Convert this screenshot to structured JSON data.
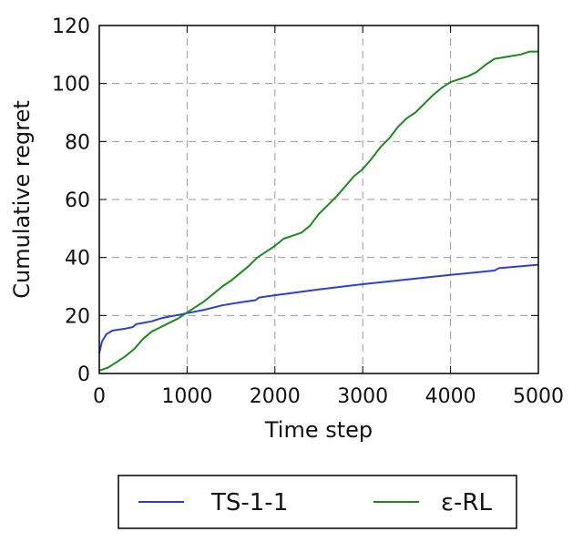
{
  "chart_data": {
    "type": "line",
    "title": "",
    "xlabel": "Time step",
    "ylabel": "Cumulative regret",
    "xlim": [
      0,
      5000
    ],
    "ylim": [
      0,
      120
    ],
    "xticks": [
      0,
      1000,
      2000,
      3000,
      4000,
      5000
    ],
    "yticks": [
      0,
      20,
      40,
      60,
      80,
      100,
      120
    ],
    "x_tick_labels": [
      "0",
      "1000",
      "2000",
      "3000",
      "4000",
      "5000"
    ],
    "y_tick_labels": [
      "0",
      "20",
      "40",
      "60",
      "80",
      "100",
      "120"
    ],
    "grid": true,
    "legend_position": "below",
    "series": [
      {
        "name": "TS-1-1",
        "color": "#2c3fd8",
        "points": [
          [
            0,
            7
          ],
          [
            30,
            11
          ],
          [
            80,
            13.5
          ],
          [
            150,
            14.8
          ],
          [
            300,
            15.5
          ],
          [
            380,
            16
          ],
          [
            420,
            17
          ],
          [
            600,
            18
          ],
          [
            700,
            19
          ],
          [
            780,
            19.5
          ],
          [
            900,
            20.2
          ],
          [
            1000,
            20.8
          ],
          [
            1200,
            22
          ],
          [
            1400,
            23.5
          ],
          [
            1600,
            24.5
          ],
          [
            1780,
            25.3
          ],
          [
            1820,
            26.2
          ],
          [
            2000,
            27
          ],
          [
            2500,
            29
          ],
          [
            3000,
            30.8
          ],
          [
            3500,
            32.4
          ],
          [
            4000,
            34
          ],
          [
            4500,
            35.5
          ],
          [
            4550,
            36.3
          ],
          [
            5000,
            37.5
          ]
        ]
      },
      {
        "name": "ε-RL",
        "color": "#1a8a1a",
        "points": [
          [
            0,
            1
          ],
          [
            100,
            2
          ],
          [
            200,
            4
          ],
          [
            300,
            6
          ],
          [
            400,
            8.5
          ],
          [
            500,
            12
          ],
          [
            600,
            14.5
          ],
          [
            700,
            16
          ],
          [
            800,
            17.5
          ],
          [
            900,
            19
          ],
          [
            1000,
            21
          ],
          [
            1100,
            23
          ],
          [
            1200,
            25
          ],
          [
            1300,
            27.5
          ],
          [
            1400,
            30
          ],
          [
            1500,
            32
          ],
          [
            1600,
            34.5
          ],
          [
            1700,
            37
          ],
          [
            1800,
            40
          ],
          [
            1900,
            42
          ],
          [
            2000,
            44
          ],
          [
            2100,
            46.5
          ],
          [
            2200,
            47.5
          ],
          [
            2300,
            48.5
          ],
          [
            2400,
            51
          ],
          [
            2500,
            55
          ],
          [
            2600,
            58
          ],
          [
            2700,
            61
          ],
          [
            2800,
            64.5
          ],
          [
            2900,
            68
          ],
          [
            3000,
            70.5
          ],
          [
            3100,
            74
          ],
          [
            3200,
            78
          ],
          [
            3300,
            81
          ],
          [
            3400,
            85
          ],
          [
            3500,
            88
          ],
          [
            3600,
            90
          ],
          [
            3700,
            93
          ],
          [
            3800,
            96
          ],
          [
            3900,
            98.5
          ],
          [
            4000,
            100.5
          ],
          [
            4100,
            101.5
          ],
          [
            4200,
            102.5
          ],
          [
            4300,
            104
          ],
          [
            4400,
            106.5
          ],
          [
            4500,
            108.5
          ],
          [
            4600,
            109
          ],
          [
            4700,
            109.5
          ],
          [
            4800,
            110
          ],
          [
            4900,
            111
          ],
          [
            5000,
            111
          ]
        ]
      }
    ]
  }
}
